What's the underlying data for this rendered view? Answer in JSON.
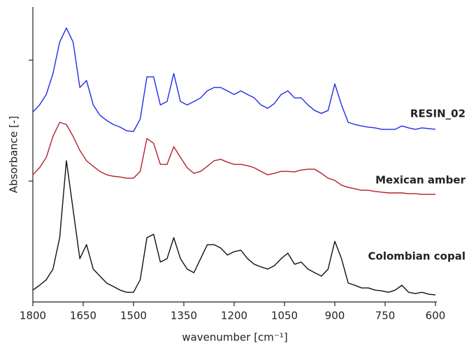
{
  "chart_data": {
    "type": "line",
    "x_label": "wavenumber [cm⁻¹]",
    "y_label": "Absorbance [-]",
    "x": [
      1800,
      1780,
      1760,
      1740,
      1720,
      1700,
      1680,
      1660,
      1640,
      1620,
      1600,
      1580,
      1560,
      1540,
      1520,
      1500,
      1480,
      1460,
      1440,
      1420,
      1400,
      1380,
      1360,
      1340,
      1320,
      1300,
      1280,
      1260,
      1240,
      1220,
      1200,
      1180,
      1160,
      1140,
      1120,
      1100,
      1080,
      1060,
      1040,
      1020,
      1000,
      980,
      960,
      940,
      920,
      900,
      880,
      860,
      840,
      820,
      800,
      780,
      760,
      740,
      720,
      700,
      680,
      660,
      640,
      620,
      600
    ],
    "xlim": [
      1800,
      600
    ],
    "xticks": [
      1800,
      1650,
      1500,
      1350,
      1200,
      1050,
      900,
      750,
      600
    ],
    "ylim": [
      0,
      1.22
    ],
    "yticks": [
      0.5,
      1.0
    ],
    "series": [
      {
        "name": "RESIN_02",
        "color": "#1f2de6",
        "values": [
          0.786,
          0.815,
          0.858,
          0.945,
          1.075,
          1.133,
          1.075,
          0.887,
          0.916,
          0.815,
          0.772,
          0.751,
          0.734,
          0.723,
          0.708,
          0.705,
          0.757,
          0.931,
          0.931,
          0.815,
          0.829,
          0.945,
          0.829,
          0.815,
          0.829,
          0.844,
          0.873,
          0.887,
          0.887,
          0.873,
          0.858,
          0.873,
          0.858,
          0.844,
          0.815,
          0.801,
          0.821,
          0.858,
          0.873,
          0.844,
          0.844,
          0.815,
          0.792,
          0.78,
          0.792,
          0.902,
          0.815,
          0.743,
          0.734,
          0.728,
          0.723,
          0.72,
          0.714,
          0.714,
          0.714,
          0.728,
          0.72,
          0.714,
          0.72,
          0.717,
          0.714
        ]
      },
      {
        "name": "Mexican amber",
        "color": "#b3202a",
        "values": [
          0.526,
          0.555,
          0.598,
          0.685,
          0.743,
          0.734,
          0.685,
          0.627,
          0.584,
          0.561,
          0.54,
          0.526,
          0.52,
          0.517,
          0.512,
          0.512,
          0.54,
          0.676,
          0.656,
          0.569,
          0.569,
          0.642,
          0.598,
          0.555,
          0.532,
          0.54,
          0.561,
          0.584,
          0.59,
          0.578,
          0.569,
          0.569,
          0.564,
          0.555,
          0.54,
          0.526,
          0.532,
          0.54,
          0.54,
          0.538,
          0.546,
          0.549,
          0.549,
          0.532,
          0.512,
          0.503,
          0.483,
          0.474,
          0.468,
          0.462,
          0.462,
          0.457,
          0.454,
          0.451,
          0.451,
          0.451,
          0.448,
          0.448,
          0.445,
          0.445,
          0.445
        ]
      },
      {
        "name": "Colombian copal",
        "color": "#111111",
        "values": [
          0.049,
          0.069,
          0.092,
          0.136,
          0.266,
          0.584,
          0.382,
          0.179,
          0.237,
          0.136,
          0.107,
          0.078,
          0.064,
          0.049,
          0.04,
          0.04,
          0.092,
          0.266,
          0.28,
          0.165,
          0.179,
          0.266,
          0.179,
          0.136,
          0.121,
          0.179,
          0.237,
          0.237,
          0.223,
          0.194,
          0.208,
          0.214,
          0.179,
          0.156,
          0.145,
          0.136,
          0.15,
          0.179,
          0.202,
          0.156,
          0.165,
          0.136,
          0.121,
          0.107,
          0.136,
          0.251,
          0.179,
          0.078,
          0.069,
          0.058,
          0.058,
          0.049,
          0.046,
          0.04,
          0.049,
          0.069,
          0.04,
          0.035,
          0.04,
          0.032,
          0.029
        ]
      }
    ]
  }
}
